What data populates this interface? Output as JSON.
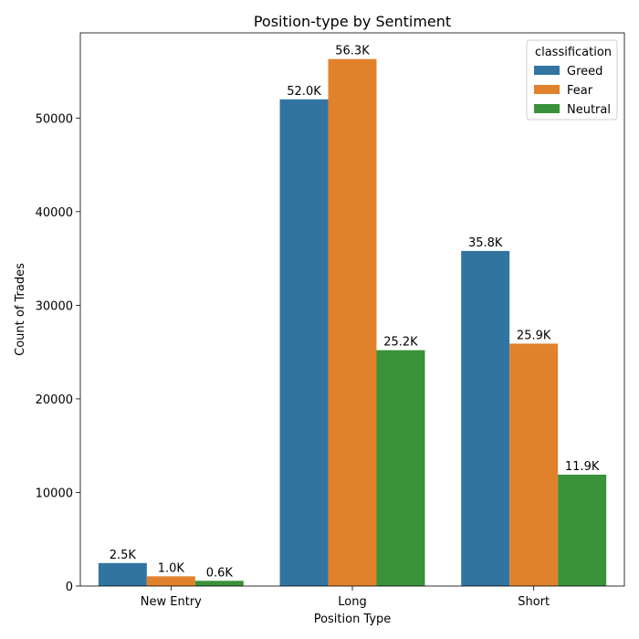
{
  "chart_data": {
    "type": "bar",
    "title": "Position-type by Sentiment",
    "xlabel": "Position Type",
    "ylabel": "Count of Trades",
    "categories": [
      "New Entry",
      "Long",
      "Short"
    ],
    "series": [
      {
        "name": "Greed",
        "color": "#3274a1",
        "values": [
          2457,
          52000,
          35800
        ],
        "labels": [
          "2.5K",
          "52.0K",
          "35.8K"
        ]
      },
      {
        "name": "Fear",
        "color": "#e1812c",
        "values": [
          1040,
          56300,
          25900
        ],
        "labels": [
          "1.0K",
          "56.3K",
          "25.9K"
        ]
      },
      {
        "name": "Neutral",
        "color": "#3a923a",
        "values": [
          560,
          25200,
          11900
        ],
        "labels": [
          "0.6K",
          "25.2K",
          "11.9K"
        ]
      }
    ],
    "ylim": [
      0,
      59100
    ],
    "yticks": [
      0,
      10000,
      20000,
      30000,
      40000,
      50000
    ],
    "grid": false,
    "legend": {
      "title": "classification",
      "placement": "top-right"
    }
  }
}
